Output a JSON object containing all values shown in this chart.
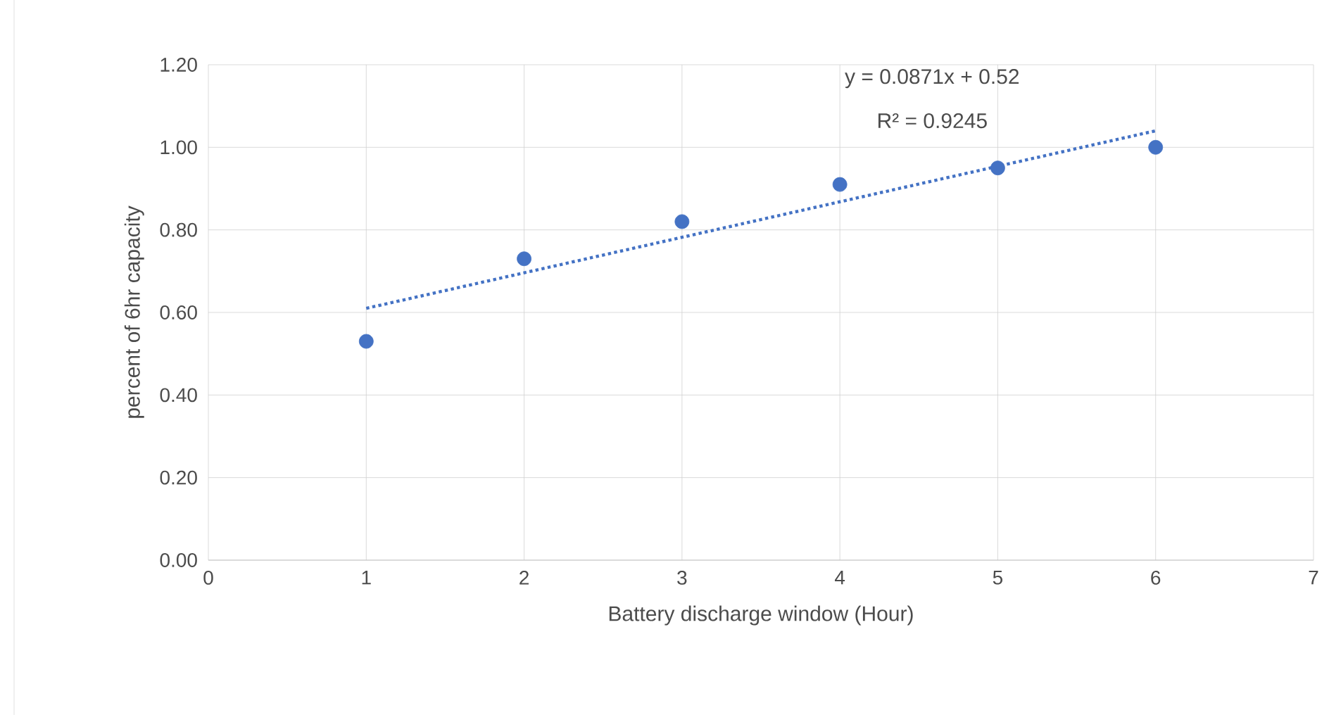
{
  "chart_data": {
    "type": "scatter",
    "xlabel": "Battery discharge window (Hour)",
    "ylabel": "percent of 6hr capacity",
    "annotations": [
      "y = 0.0871x + 0.52",
      "R² = 0.9245"
    ],
    "xlim": [
      0,
      7
    ],
    "xticks": [
      0,
      1,
      2,
      3,
      4,
      5,
      6,
      7
    ],
    "ylim": [
      0,
      1.2
    ],
    "yticks": [
      {
        "value": 0,
        "label": "0.00"
      },
      {
        "value": 0.2,
        "label": "0.20"
      },
      {
        "value": 0.4,
        "label": "0.40"
      },
      {
        "value": 0.6,
        "label": "0.60"
      },
      {
        "value": 0.8,
        "label": "0.80"
      },
      {
        "value": 1.0,
        "label": "1.00"
      },
      {
        "value": 1.2,
        "label": "1.20"
      }
    ],
    "grid": true,
    "marker": "circle",
    "series": [
      {
        "color": "#4472c4",
        "x": [
          1,
          2,
          3,
          4,
          5,
          6
        ],
        "values": [
          0.53,
          0.73,
          0.82,
          0.91,
          0.95,
          1.0
        ]
      },
      {
        "type": "line",
        "color": "#4472c4",
        "x": [
          1,
          6
        ],
        "values": [
          0.61,
          1.04
        ],
        "line_style": "dotted",
        "marker": "none"
      }
    ]
  }
}
